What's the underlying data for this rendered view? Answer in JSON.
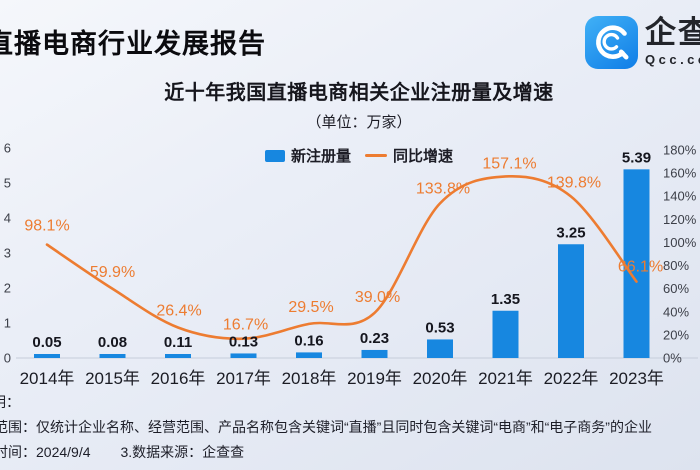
{
  "report_title": "直播电商行业发展报告",
  "logo": {
    "name": "企查查",
    "tagline": "Qcc.com"
  },
  "chart_data": {
    "type": "bar+line",
    "title": "近十年我国直播电商相关企业注册量及增速",
    "subtitle": "（单位：万家）",
    "legend": [
      {
        "label": "新注册量",
        "type": "bar",
        "color": "#1787E0"
      },
      {
        "label": "同比增速",
        "type": "line",
        "color": "#ED7C31"
      }
    ],
    "categories": [
      "2014年",
      "2015年",
      "2016年",
      "2017年",
      "2018年",
      "2019年",
      "2020年",
      "2021年",
      "2022年",
      "2023年"
    ],
    "series": [
      {
        "name": "新注册量",
        "type": "bar",
        "unit": "万家",
        "values": [
          0.05,
          0.08,
          0.11,
          0.13,
          0.16,
          0.23,
          0.53,
          1.35,
          3.25,
          5.39
        ]
      },
      {
        "name": "同比增速",
        "type": "line",
        "unit": "%",
        "values": [
          98.1,
          59.9,
          26.4,
          16.7,
          29.5,
          39.0,
          133.8,
          157.1,
          139.8,
          66.1
        ],
        "labels": [
          "98.1%",
          "59.9%",
          "26.4%",
          "16.7%",
          "29.5%",
          "39.0%",
          "133.8%",
          "157.1%",
          "139.8%",
          "66.1%"
        ]
      }
    ],
    "left_axis": {
      "ticks": [
        0,
        1,
        2,
        3,
        4,
        5,
        6
      ],
      "min": 0,
      "max": 6
    },
    "right_axis": {
      "ticks": [
        "0%",
        "20%",
        "40%",
        "60%",
        "80%",
        "100%",
        "120%",
        "140%",
        "160%",
        "180%"
      ],
      "min": 0,
      "max": 180
    },
    "grid": false,
    "legend_position": "top-center"
  },
  "notes": {
    "line1": "明：",
    "line2": "范围：仅统计企业名称、经营范围、产品名称包含关键词“直播”且同时包含关键词“电商”和“电子商务”的企业",
    "line3_time": "时间：2024/9/4",
    "line3_source": "3.数据来源：企查查"
  }
}
